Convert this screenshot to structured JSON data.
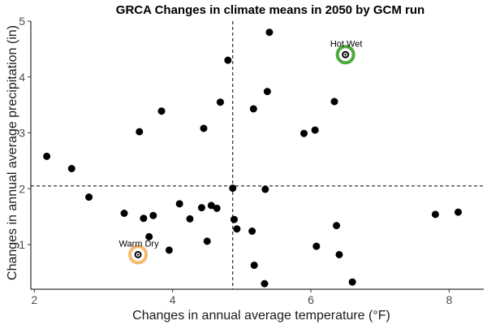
{
  "chart_data": {
    "type": "scatter",
    "title": "GRCA Changes in climate means in 2050 by GCM run",
    "xlabel": "Changes in annual average temperature (°F)",
    "ylabel": "Changes in annual average precipitation (in)",
    "xlim": [
      1.95,
      8.5
    ],
    "ylim": [
      0.2,
      5.0
    ],
    "xticks": [
      2,
      4,
      6,
      8
    ],
    "yticks": [
      1,
      2,
      3,
      4,
      5
    ],
    "grid": false,
    "reference_lines": {
      "x": 4.87,
      "y": 2.05
    },
    "point_color": "#000000",
    "points": [
      {
        "x": 2.18,
        "y": 2.58
      },
      {
        "x": 2.54,
        "y": 2.36
      },
      {
        "x": 2.79,
        "y": 1.85
      },
      {
        "x": 3.3,
        "y": 1.56
      },
      {
        "x": 3.52,
        "y": 3.02
      },
      {
        "x": 3.58,
        "y": 1.47
      },
      {
        "x": 3.66,
        "y": 1.14
      },
      {
        "x": 3.72,
        "y": 1.52
      },
      {
        "x": 3.84,
        "y": 3.39
      },
      {
        "x": 3.95,
        "y": 0.9
      },
      {
        "x": 4.1,
        "y": 1.73
      },
      {
        "x": 4.25,
        "y": 1.46
      },
      {
        "x": 4.42,
        "y": 1.66
      },
      {
        "x": 4.45,
        "y": 3.08
      },
      {
        "x": 4.5,
        "y": 1.06
      },
      {
        "x": 4.56,
        "y": 1.7
      },
      {
        "x": 4.64,
        "y": 1.65
      },
      {
        "x": 4.69,
        "y": 3.55
      },
      {
        "x": 4.8,
        "y": 4.3
      },
      {
        "x": 4.87,
        "y": 2.01
      },
      {
        "x": 4.89,
        "y": 1.45
      },
      {
        "x": 4.93,
        "y": 1.28
      },
      {
        "x": 5.15,
        "y": 1.24
      },
      {
        "x": 5.17,
        "y": 3.43
      },
      {
        "x": 5.18,
        "y": 0.63
      },
      {
        "x": 5.33,
        "y": 0.3
      },
      {
        "x": 5.34,
        "y": 1.99
      },
      {
        "x": 5.37,
        "y": 3.74
      },
      {
        "x": 5.4,
        "y": 4.8
      },
      {
        "x": 5.9,
        "y": 2.99
      },
      {
        "x": 6.06,
        "y": 3.05
      },
      {
        "x": 6.08,
        "y": 0.97
      },
      {
        "x": 6.34,
        "y": 3.56
      },
      {
        "x": 6.37,
        "y": 1.34
      },
      {
        "x": 6.41,
        "y": 0.82
      },
      {
        "x": 6.6,
        "y": 0.33
      },
      {
        "x": 7.8,
        "y": 1.54
      },
      {
        "x": 8.13,
        "y": 1.58
      },
      {
        "x": 3.5,
        "y": 0.82
      },
      {
        "x": 6.5,
        "y": 4.4
      }
    ],
    "highlights": [
      {
        "label": "Warm Dry",
        "x": 3.5,
        "y": 0.82,
        "color": "#f5ba70"
      },
      {
        "label": "Hot Wet",
        "x": 6.5,
        "y": 4.4,
        "color": "#4ea93b"
      }
    ]
  }
}
